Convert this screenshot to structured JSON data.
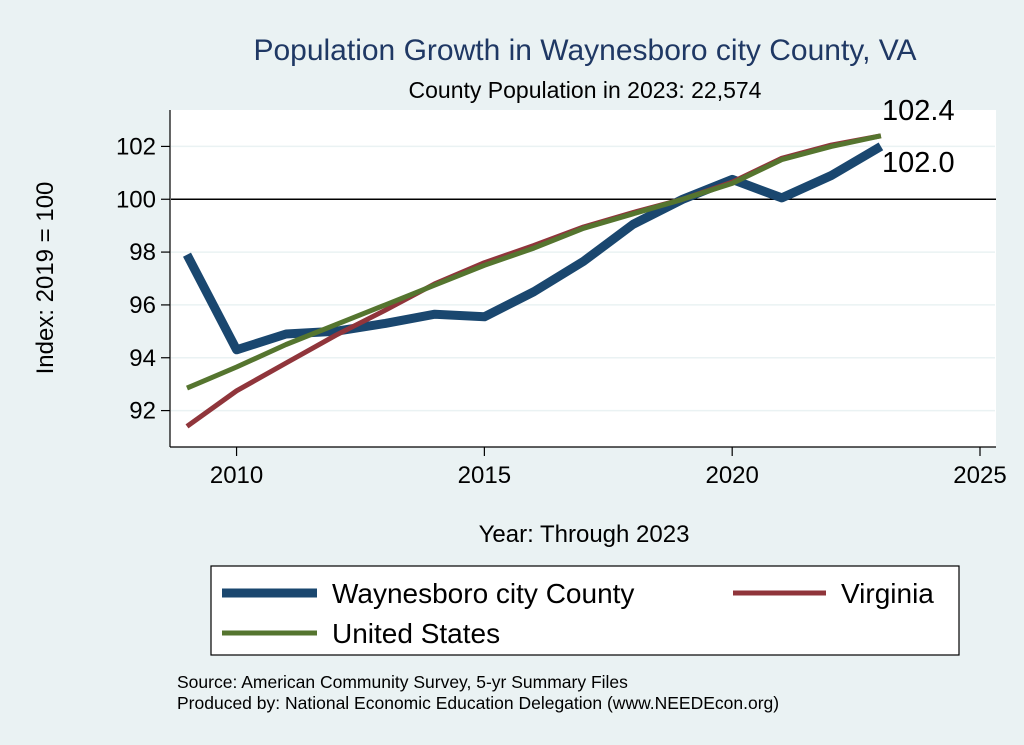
{
  "chart_data": {
    "type": "line",
    "title": "Population Growth in Waynesboro city County, VA",
    "subtitle": "County Population in 2023: 22,574",
    "xlabel": "Year: Through 2023",
    "ylabel": "Index: 2019 = 100",
    "xlim": [
      2009,
      2025
    ],
    "ylim": [
      91,
      103
    ],
    "xticks": [
      2010,
      2015,
      2020,
      2025
    ],
    "yticks": [
      92,
      94,
      96,
      98,
      100,
      102
    ],
    "reference_line": 100,
    "grid": true,
    "x": [
      2009,
      2010,
      2011,
      2012,
      2013,
      2014,
      2015,
      2016,
      2017,
      2018,
      2019,
      2020,
      2021,
      2022,
      2023
    ],
    "series": [
      {
        "name": "Waynesboro city  County",
        "color": "#1a476f",
        "values": [
          97.9,
          94.3,
          94.9,
          95.0,
          95.3,
          95.65,
          95.55,
          96.5,
          97.65,
          99.05,
          100.0,
          100.75,
          100.05,
          100.9,
          102.0
        ]
      },
      {
        "name": "Virginia",
        "color": "#90353b",
        "values": [
          91.4,
          92.75,
          93.8,
          94.85,
          95.8,
          96.8,
          97.6,
          98.25,
          98.95,
          99.5,
          100.0,
          100.65,
          101.55,
          102.05,
          102.4
        ]
      },
      {
        "name": "United States",
        "color": "#55752f",
        "values": [
          92.85,
          93.65,
          94.5,
          95.25,
          96.0,
          96.75,
          97.5,
          98.15,
          98.9,
          99.45,
          100.0,
          100.6,
          101.5,
          102.0,
          102.4
        ]
      }
    ],
    "end_labels": [
      "102.4",
      "102.0"
    ],
    "legend": {
      "position": "bottom",
      "entries": [
        "Waynesboro city  County",
        "Virginia",
        "United States"
      ]
    },
    "notes": [
      "Source: American Community Survey, 5-yr Summary Files",
      "Produced by: National Economic Education Delegation (www.NEEDEcon.org)"
    ]
  }
}
